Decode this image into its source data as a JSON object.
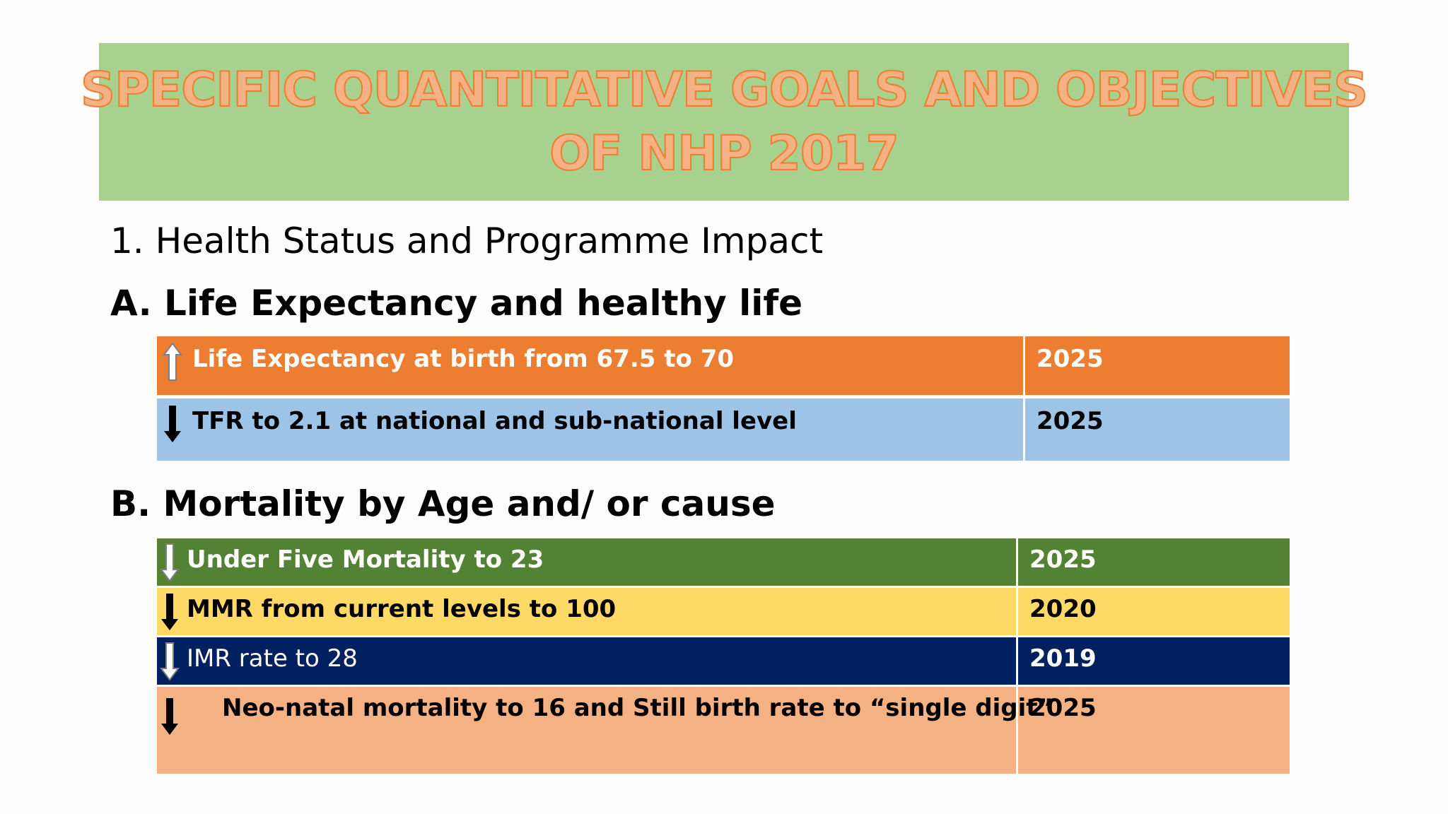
{
  "title": {
    "line1": "SPECIFIC QUANTITATIVE GOALS AND OBJECTIVES",
    "line2": "OF NHP 2017"
  },
  "subtitle": "1. Health Status and Programme Impact",
  "section_a": {
    "heading": "A. Life Expectancy and healthy life",
    "rows": [
      {
        "goal": "Life Expectancy at birth from 67.5 to 70",
        "year": "2025",
        "arrow": "up-arrow-icon",
        "bg": "#ed7d31",
        "color": "#ffffff"
      },
      {
        "goal": "TFR to 2.1 at national and sub-national level",
        "year": "2025",
        "arrow": "down-arrow-icon",
        "bg": "#9dc3e6",
        "color": "#000000"
      }
    ]
  },
  "section_b": {
    "heading": "B. Mortality by Age and/ or cause",
    "rows": [
      {
        "goal": "Under Five Mortality to 23",
        "year": "2025",
        "arrow": "down-arrow-icon",
        "bg": "#548235",
        "color": "#ffffff"
      },
      {
        "goal": "MMR from current levels to 100",
        "year": "2020",
        "arrow": "down-arrow-icon",
        "bg": "#ffd966",
        "color": "#000000"
      },
      {
        "goal": "IMR rate to 28",
        "year": "2019",
        "arrow": "down-arrow-icon",
        "bg": "#002060",
        "color": "#ffffff"
      },
      {
        "goal": "Neo-natal mortality to 16 and Still birth rate to “single digit”",
        "year": "2025",
        "arrow": "down-arrow-icon",
        "bg": "#f4b183",
        "color": "#000000"
      }
    ]
  }
}
